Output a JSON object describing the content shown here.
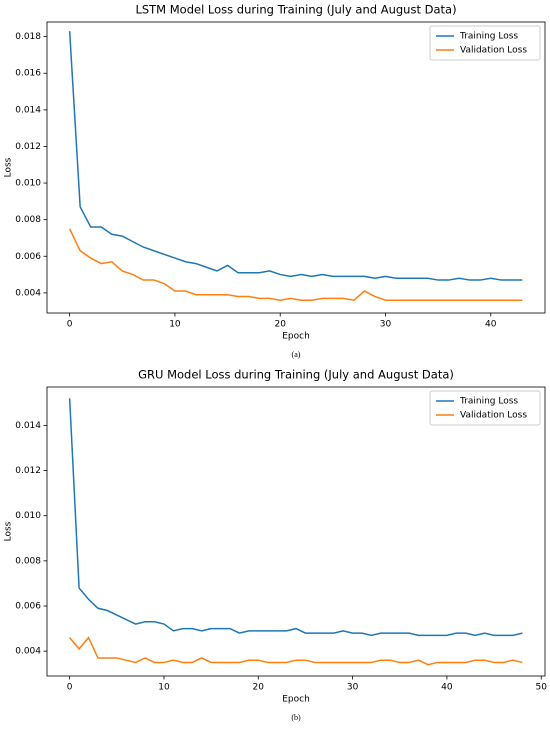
{
  "chart_data": [
    {
      "type": "line",
      "title": "LSTM Model Loss during Training (July and August Data)",
      "x_label": "Epoch",
      "y_label": "Loss",
      "caption": "(a)",
      "x": [
        0,
        1,
        2,
        3,
        4,
        5,
        6,
        7,
        8,
        9,
        10,
        11,
        12,
        13,
        14,
        15,
        16,
        17,
        18,
        19,
        20,
        21,
        22,
        23,
        24,
        25,
        26,
        27,
        28,
        29,
        30,
        31,
        32,
        33,
        34,
        35,
        36,
        37,
        38,
        39,
        40,
        41,
        42,
        43
      ],
      "series": [
        {
          "name": "Training Loss",
          "color": "#1f77b4",
          "values": [
            0.0183,
            0.0087,
            0.0076,
            0.0076,
            0.0072,
            0.0071,
            0.0068,
            0.0065,
            0.0063,
            0.0061,
            0.0059,
            0.0057,
            0.0056,
            0.0054,
            0.0052,
            0.0055,
            0.0051,
            0.0051,
            0.0051,
            0.0052,
            0.005,
            0.0049,
            0.005,
            0.0049,
            0.005,
            0.0049,
            0.0049,
            0.0049,
            0.0049,
            0.0048,
            0.0049,
            0.0048,
            0.0048,
            0.0048,
            0.0048,
            0.0047,
            0.0047,
            0.0048,
            0.0047,
            0.0047,
            0.0048,
            0.0047,
            0.0047,
            0.0047
          ]
        },
        {
          "name": "Validation Loss",
          "color": "#ff7f0e",
          "values": [
            0.0075,
            0.0063,
            0.0059,
            0.0056,
            0.0057,
            0.0052,
            0.005,
            0.0047,
            0.0047,
            0.0045,
            0.0041,
            0.0041,
            0.0039,
            0.0039,
            0.0039,
            0.0039,
            0.0038,
            0.0038,
            0.0037,
            0.0037,
            0.0036,
            0.0037,
            0.0036,
            0.0036,
            0.0037,
            0.0037,
            0.0037,
            0.0036,
            0.0041,
            0.0038,
            0.0036,
            0.0036,
            0.0036,
            0.0036,
            0.0036,
            0.0036,
            0.0036,
            0.0036,
            0.0036,
            0.0036,
            0.0036,
            0.0036,
            0.0036,
            0.0036
          ]
        }
      ],
      "xlim": [
        -2.15,
        45.15
      ],
      "xticks": [
        0,
        10,
        20,
        30,
        40
      ],
      "ylim": [
        0.0029,
        0.0188
      ],
      "yticks": [
        0.004,
        0.006,
        0.008,
        {
          "value": 0.01,
          "label": "0.010"
        },
        0.012,
        0.014,
        0.016,
        0.018
      ],
      "legend": "upper right"
    },
    {
      "type": "line",
      "title": "GRU Model Loss during Training (July and August Data)",
      "x_label": "Epoch",
      "y_label": "Loss",
      "caption": "(b)",
      "x": [
        0,
        1,
        2,
        3,
        4,
        5,
        6,
        7,
        8,
        9,
        10,
        11,
        12,
        13,
        14,
        15,
        16,
        17,
        18,
        19,
        20,
        21,
        22,
        23,
        24,
        25,
        26,
        27,
        28,
        29,
        30,
        31,
        32,
        33,
        34,
        35,
        36,
        37,
        38,
        39,
        40,
        41,
        42,
        43,
        44,
        45,
        46,
        47,
        48
      ],
      "series": [
        {
          "name": "Training Loss",
          "color": "#1f77b4",
          "values": [
            0.0152,
            0.0068,
            0.0063,
            0.0059,
            0.0058,
            0.0056,
            0.0054,
            0.0052,
            0.0053,
            0.0053,
            0.0052,
            0.0049,
            0.005,
            0.005,
            0.0049,
            0.005,
            0.005,
            0.005,
            0.0048,
            0.0049,
            0.0049,
            0.0049,
            0.0049,
            0.0049,
            0.005,
            0.0048,
            0.0048,
            0.0048,
            0.0048,
            0.0049,
            0.0048,
            0.0048,
            0.0047,
            0.0048,
            0.0048,
            0.0048,
            0.0048,
            0.0047,
            0.0047,
            0.0047,
            0.0047,
            0.0048,
            0.0048,
            0.0047,
            0.0048,
            0.0047,
            0.0047,
            0.0047,
            0.0048
          ]
        },
        {
          "name": "Validation Loss",
          "color": "#ff7f0e",
          "values": [
            0.0046,
            0.0041,
            0.0046,
            0.0037,
            0.0037,
            0.0037,
            0.0036,
            0.0035,
            0.0037,
            0.0035,
            0.0035,
            0.0036,
            0.0035,
            0.0035,
            0.0037,
            0.0035,
            0.0035,
            0.0035,
            0.0035,
            0.0036,
            0.0036,
            0.0035,
            0.0035,
            0.0035,
            0.0036,
            0.0036,
            0.0035,
            0.0035,
            0.0035,
            0.0035,
            0.0035,
            0.0035,
            0.0035,
            0.0036,
            0.0036,
            0.0035,
            0.0035,
            0.0036,
            0.0034,
            0.0035,
            0.0035,
            0.0035,
            0.0035,
            0.0036,
            0.0036,
            0.0035,
            0.0035,
            0.0036,
            0.0035
          ]
        }
      ],
      "xlim": [
        -2.4,
        50.4
      ],
      "xticks": [
        0,
        10,
        20,
        30,
        40,
        50
      ],
      "ylim": [
        0.0029,
        0.0157
      ],
      "yticks": [
        0.004,
        0.006,
        0.008,
        {
          "value": 0.01,
          "label": "0.010"
        },
        0.012,
        0.014
      ],
      "legend": "upper right"
    }
  ]
}
